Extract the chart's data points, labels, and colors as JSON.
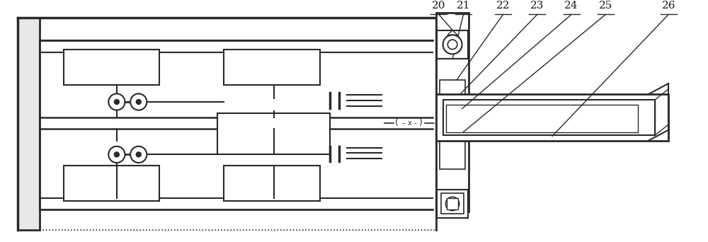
{
  "bg_color": "#ffffff",
  "line_color": "#2a2a2a",
  "label_color": "#1a1a1a",
  "labels": [
    "20",
    "21",
    "22",
    "23",
    "24",
    "25",
    "26"
  ],
  "figsize": [
    10.0,
    3.42
  ],
  "dpi": 100
}
